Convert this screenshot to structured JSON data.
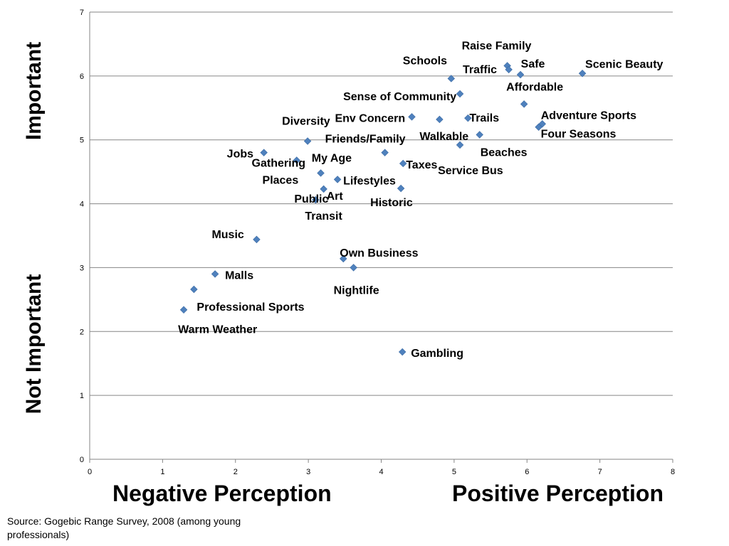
{
  "chart_data": {
    "type": "scatter",
    "xlim": [
      0,
      8
    ],
    "ylim": [
      0,
      7
    ],
    "x_ticks": [
      "0",
      "1",
      "2",
      "3",
      "4",
      "5",
      "6",
      "7",
      "8"
    ],
    "y_ticks": [
      "0",
      "1",
      "2",
      "3",
      "4",
      "5",
      "6",
      "7"
    ],
    "grid": "horizontal",
    "marker_color": "#4f81bd",
    "points": [
      {
        "label": "Raise Family",
        "x": 5.73,
        "y": 6.16
      },
      {
        "label": "Safe",
        "x": 5.75,
        "y": 6.1
      },
      {
        "label": "Schools",
        "x": 4.96,
        "y": 5.96
      },
      {
        "label": "Traffic",
        "x": 5.91,
        "y": 6.02
      },
      {
        "label": "Scenic Beauty",
        "x": 6.76,
        "y": 6.04
      },
      {
        "label": "Affordable",
        "x": 5.96,
        "y": 5.56
      },
      {
        "label": "Sense of Community",
        "x": 5.08,
        "y": 5.72
      },
      {
        "label": "Env Concern",
        "x": 4.42,
        "y": 5.36
      },
      {
        "label": "Trails",
        "x": 5.19,
        "y": 5.34
      },
      {
        "label": "Walkable",
        "x": 4.8,
        "y": 5.32
      },
      {
        "label": "Beaches",
        "x": 5.35,
        "y": 5.08
      },
      {
        "label": "Adventure Sports",
        "x": 6.21,
        "y": 5.25
      },
      {
        "label": "Four Seasons",
        "x": 6.16,
        "y": 5.2
      },
      {
        "label": "Diversity",
        "x": 2.99,
        "y": 4.98
      },
      {
        "label": "Friends/Family",
        "x": 4.05,
        "y": 4.8
      },
      {
        "label": "Service Bus",
        "x": 5.08,
        "y": 4.92
      },
      {
        "label": "Jobs",
        "x": 2.39,
        "y": 4.8
      },
      {
        "label": "My Age",
        "x": 2.84,
        "y": 4.68
      },
      {
        "label": "Taxes",
        "x": 4.3,
        "y": 4.63
      },
      {
        "label": "Gathering Places",
        "x": 3.17,
        "y": 4.48
      },
      {
        "label": "Lifestyles",
        "x": 3.4,
        "y": 4.38
      },
      {
        "label": "Art",
        "x": 3.21,
        "y": 4.23
      },
      {
        "label": "Historic",
        "x": 4.27,
        "y": 4.24
      },
      {
        "label": "Public Transit",
        "x": 3.1,
        "y": 4.06
      },
      {
        "label": "Music",
        "x": 2.29,
        "y": 3.44
      },
      {
        "label": "Own Business",
        "x": 3.48,
        "y": 3.14
      },
      {
        "label": "Nightlife",
        "x": 3.62,
        "y": 3.0
      },
      {
        "label": "Malls",
        "x": 1.72,
        "y": 2.9
      },
      {
        "label": "Professional Sports",
        "x": 1.43,
        "y": 2.66
      },
      {
        "label": "Warm Weather",
        "x": 1.29,
        "y": 2.34
      },
      {
        "label": "Gambling",
        "x": 4.29,
        "y": 1.68
      }
    ]
  },
  "axis_titles": {
    "y_top": "Important",
    "y_bottom": "Not Important",
    "x_left": "Negative Perception",
    "x_right": "Positive Perception"
  },
  "source_note": "Source:  Gogebic Range Survey, 2008 (among young professionals)"
}
